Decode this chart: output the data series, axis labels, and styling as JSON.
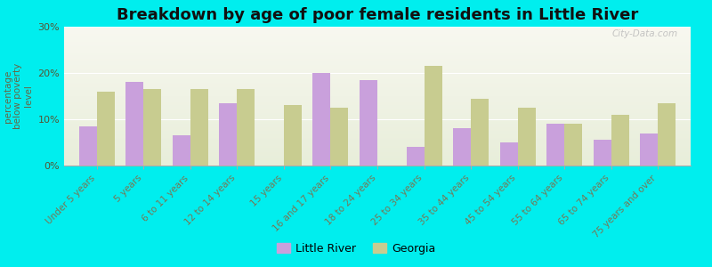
{
  "title": "Breakdown by age of poor female residents in Little River",
  "ylabel": "percentage\nbelow poverty\nlevel",
  "categories": [
    "Under 5 years",
    "5 years",
    "6 to 11 years",
    "12 to 14 years",
    "15 years",
    "16 and 17 years",
    "18 to 24 years",
    "25 to 34 years",
    "35 to 44 years",
    "45 to 54 years",
    "55 to 64 years",
    "65 to 74 years",
    "75 years and over"
  ],
  "little_river": [
    8.5,
    18.0,
    6.5,
    13.5,
    0.0,
    20.0,
    18.5,
    4.0,
    8.0,
    5.0,
    9.0,
    5.5,
    7.0
  ],
  "georgia": [
    16.0,
    16.5,
    16.5,
    16.5,
    13.0,
    12.5,
    0.0,
    21.5,
    14.5,
    12.5,
    9.0,
    11.0,
    13.5
  ],
  "little_river_color": "#c9a0dc",
  "georgia_color": "#c8cc90",
  "background_color": "#00eeee",
  "plot_bg_color_top": "#f8f8f0",
  "plot_bg_color_bottom": "#e8eeda",
  "ylim": [
    0,
    30
  ],
  "yticks": [
    0,
    10,
    20,
    30
  ],
  "ytick_labels": [
    "0%",
    "10%",
    "20%",
    "30%"
  ],
  "watermark": "City-Data.com",
  "legend_little_river": "Little River",
  "legend_georgia": "Georgia",
  "title_fontsize": 13,
  "axis_label_color": "#777755",
  "ylabel_color": "#666644",
  "bar_width": 0.38
}
